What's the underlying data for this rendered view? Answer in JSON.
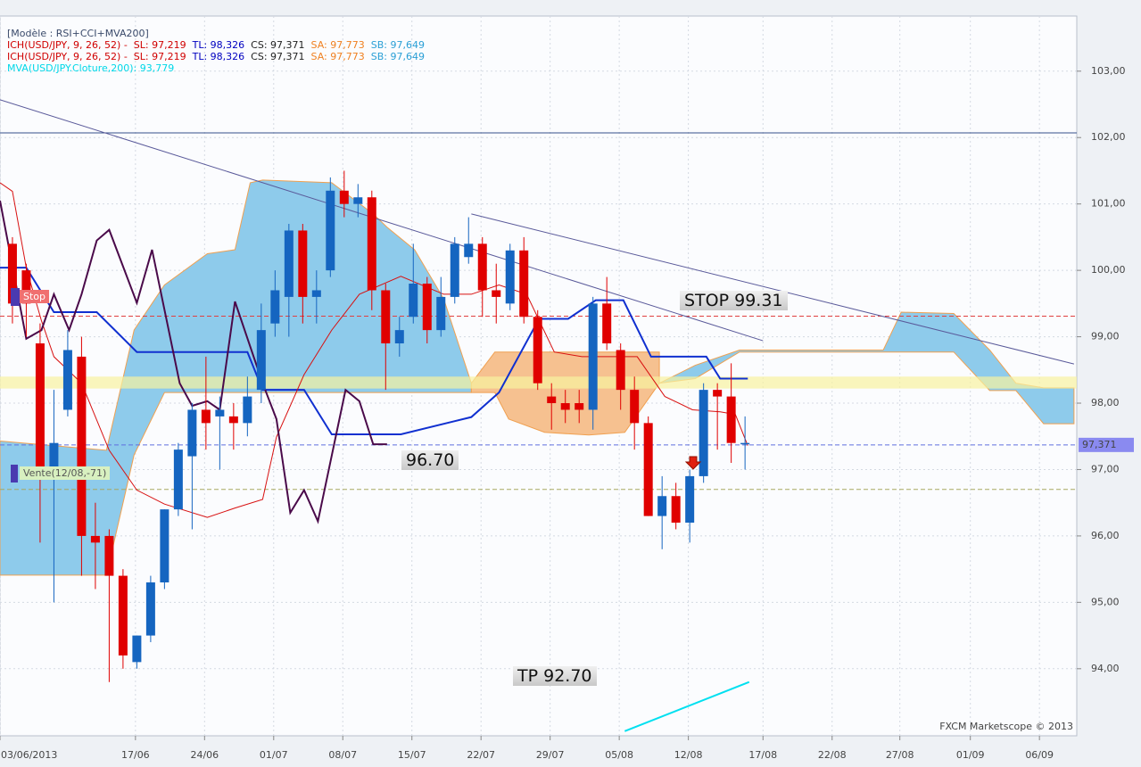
{
  "header": {
    "legend": [
      [
        {
          "text": "[Modèle : RSI+CCI+MVA200]",
          "color": "#3a4a6a"
        }
      ],
      [
        {
          "text": "ICH(USD/JPY, 9, 26, 52) -",
          "color": "#d00000"
        },
        {
          "text": "SL: 97,219",
          "color": "#d00000"
        },
        {
          "text": "TL: 98,326",
          "color": "#0000c0"
        },
        {
          "text": "CS: 97,371",
          "color": "#222222"
        },
        {
          "text": "SA: 97,773",
          "color": "#f08020"
        },
        {
          "text": "SB: 97,649",
          "color": "#2a9fd6"
        }
      ],
      [
        {
          "text": "ICH(USD/JPY, 9, 26, 52) -",
          "color": "#d00000"
        },
        {
          "text": "SL: 97,219",
          "color": "#d00000"
        },
        {
          "text": "TL: 98,326",
          "color": "#0000c0"
        },
        {
          "text": "CS: 97,371",
          "color": "#222222"
        },
        {
          "text": "SA: 97,773",
          "color": "#f08020"
        },
        {
          "text": "SB: 97,649",
          "color": "#2a9fd6"
        }
      ],
      [
        {
          "text": "MVA(USD/JPY.Cloture,200): 93,779",
          "color": "#00d8e8"
        }
      ]
    ]
  },
  "annotations": {
    "stop_level": "STOP 99.31",
    "level": "96.70",
    "target": "TP 92.70",
    "stop_marker": "Stop",
    "sell_marker": "Vente(12/08,-71)",
    "credit": "FXCM Marketscope © 2013"
  },
  "chart_data": {
    "type": "candlestick",
    "up_color": "#1565c0",
    "down_color": "#e00000",
    "grid": true,
    "xlim": [
      0.1,
      78.0
    ],
    "ylim": [
      92.99,
      103.83
    ],
    "xticks": [
      {
        "value": 0.1,
        "label": "03/06/2013"
      },
      {
        "value": 9.9,
        "label": "17/06"
      },
      {
        "value": 14.9,
        "label": "24/06"
      },
      {
        "value": 19.9,
        "label": "01/07"
      },
      {
        "value": 24.9,
        "label": "08/07"
      },
      {
        "value": 29.9,
        "label": "15/07"
      },
      {
        "value": 34.9,
        "label": "22/07"
      },
      {
        "value": 39.9,
        "label": "29/07"
      },
      {
        "value": 44.9,
        "label": "05/08"
      },
      {
        "value": 49.9,
        "label": "12/08"
      },
      {
        "value": 55.3,
        "label": "17/08"
      },
      {
        "value": 60.3,
        "label": "22/08"
      },
      {
        "value": 65.2,
        "label": "27/08"
      },
      {
        "value": 70.3,
        "label": "01/09"
      },
      {
        "value": 75.3,
        "label": "06/09"
      }
    ],
    "yticks": [
      {
        "value": 94,
        "label": "94,00"
      },
      {
        "value": 95,
        "label": "95,00"
      },
      {
        "value": 96,
        "label": "96,00"
      },
      {
        "value": 97,
        "label": "97,00"
      },
      {
        "value": 98,
        "label": "98,00"
      },
      {
        "value": 99,
        "label": "99,00"
      },
      {
        "value": 100,
        "label": "100,00"
      },
      {
        "value": 101,
        "label": "101,00"
      },
      {
        "value": 102,
        "label": "102,00"
      },
      {
        "value": 103,
        "label": "103,00"
      }
    ],
    "x": [
      1,
      2,
      3,
      4,
      5,
      6,
      7,
      8,
      9,
      10,
      11,
      12,
      13,
      14,
      15,
      16,
      17,
      18,
      19,
      20,
      21,
      22,
      23,
      24,
      25,
      26,
      27,
      28,
      29,
      30,
      31,
      32,
      33,
      34,
      35,
      36,
      37,
      38,
      39,
      40,
      41,
      42,
      43,
      44,
      45,
      46,
      47,
      48,
      49,
      50,
      51,
      52,
      53,
      54
    ],
    "open": [
      100.4,
      100.0,
      98.9,
      97.0,
      97.9,
      98.7,
      96.0,
      96.0,
      95.4,
      94.1,
      94.5,
      95.3,
      96.4,
      97.2,
      97.9,
      97.8,
      97.8,
      97.7,
      98.2,
      99.2,
      99.6,
      100.6,
      99.6,
      100.0,
      101.2,
      101.0,
      101.1,
      99.7,
      98.9,
      99.3,
      99.8,
      99.1,
      99.6,
      100.2,
      100.4,
      99.7,
      99.5,
      100.3,
      99.3,
      98.1,
      98.0,
      98.0,
      97.9,
      99.5,
      98.8,
      98.2,
      97.7,
      96.3,
      96.6,
      96.2,
      96.9,
      98.2,
      98.1,
      97.4
    ],
    "high": [
      100.5,
      100.1,
      99.2,
      98.2,
      99.1,
      99.0,
      96.5,
      96.1,
      95.5,
      94.5,
      95.4,
      96.4,
      97.4,
      98.0,
      98.7,
      98.1,
      98.0,
      98.4,
      99.5,
      100.0,
      100.7,
      100.7,
      100.0,
      101.4,
      101.5,
      101.3,
      101.2,
      99.8,
      99.3,
      100.4,
      99.9,
      99.9,
      100.5,
      100.8,
      100.5,
      100.1,
      100.4,
      100.5,
      99.4,
      98.3,
      98.2,
      98.2,
      99.6,
      99.9,
      98.9,
      98.4,
      97.8,
      96.9,
      96.8,
      97.0,
      98.3,
      98.3,
      98.6,
      97.8
    ],
    "low": [
      99.2,
      99.0,
      95.9,
      95.0,
      97.8,
      95.4,
      95.2,
      93.8,
      94.0,
      94.0,
      94.4,
      95.2,
      96.3,
      96.1,
      97.3,
      97.0,
      97.3,
      97.5,
      98.0,
      99.0,
      99.0,
      99.2,
      99.2,
      99.9,
      100.8,
      100.8,
      99.4,
      98.2,
      98.7,
      99.2,
      98.9,
      99.0,
      99.5,
      100.1,
      99.3,
      99.2,
      99.4,
      99.2,
      98.2,
      97.6,
      97.7,
      97.7,
      97.6,
      98.8,
      97.9,
      97.3,
      96.3,
      95.8,
      96.1,
      95.9,
      96.8,
      97.3,
      97.1,
      97.0
    ],
    "close": [
      99.5,
      99.5,
      97.0,
      97.4,
      98.8,
      96.0,
      95.9,
      95.4,
      94.2,
      94.5,
      95.3,
      96.4,
      97.3,
      97.9,
      97.7,
      97.9,
      97.7,
      98.1,
      99.1,
      99.7,
      100.6,
      99.6,
      99.7,
      101.2,
      101.0,
      101.1,
      99.7,
      98.9,
      99.1,
      99.8,
      99.1,
      99.6,
      100.4,
      100.4,
      99.7,
      99.6,
      100.3,
      99.3,
      98.3,
      98.0,
      97.9,
      97.9,
      99.5,
      98.9,
      98.2,
      97.7,
      96.3,
      96.6,
      96.2,
      96.9,
      98.2,
      98.1,
      97.4,
      97.4
    ],
    "clouds": [
      {
        "color": "#8ecbeb",
        "x": [
          0.1,
          7.8,
          9.8,
          12.0,
          15.1,
          17.1,
          18.2,
          19.1,
          24.1,
          27.1,
          28.1,
          30.1,
          32.2,
          34.2
        ],
        "upper": [
          97.43,
          97.29,
          99.1,
          99.78,
          100.25,
          100.31,
          101.32,
          101.36,
          101.32,
          100.85,
          100.65,
          100.31,
          99.57,
          98.3
        ],
        "lower": [
          95.41,
          95.41,
          97.22,
          98.16,
          98.16,
          98.16,
          98.16,
          98.16,
          98.16,
          98.16,
          98.16,
          98.16,
          98.16,
          98.16
        ]
      },
      {
        "color": "#f6c190",
        "x": [
          34.2,
          35.9,
          36.9,
          39.5,
          42.7,
          45.3,
          47.8
        ],
        "upper": [
          98.3,
          98.77,
          98.77,
          98.77,
          98.77,
          98.77,
          98.77
        ],
        "lower": [
          98.16,
          98.16,
          97.76,
          97.56,
          97.52,
          97.56,
          98.3
        ]
      },
      {
        "color": "#8ecbeb",
        "x": [
          47.8,
          50.4,
          53.6,
          64.0,
          65.3,
          69.1,
          71.7,
          73.6,
          75.6,
          77.8
        ],
        "upper": [
          98.3,
          98.57,
          98.8,
          98.8,
          99.37,
          99.35,
          98.8,
          98.3,
          98.23,
          98.23
        ],
        "lower": [
          98.3,
          98.37,
          98.77,
          98.77,
          98.77,
          98.77,
          98.19,
          98.19,
          97.69,
          97.69
        ]
      }
    ],
    "band": {
      "from": 98.22,
      "to": 98.4,
      "color": "#f8f2a0"
    },
    "levels": [
      {
        "value": 102.07,
        "color": "#34508a",
        "dash": false
      },
      {
        "value": 99.31,
        "color": "#e04040",
        "dash": true
      },
      {
        "value": 97.371,
        "color": "#6070e0",
        "dash": true
      },
      {
        "value": 96.7,
        "color": "#a8a860",
        "dash": true
      }
    ],
    "trendlines": [
      {
        "color": "#5a5a9a",
        "x": [
          0.1,
          55.3
        ],
        "values": [
          102.57,
          98.94
        ]
      },
      {
        "color": "#5a5a9a",
        "x": [
          34.2,
          77.8
        ],
        "values": [
          100.85,
          98.59
        ]
      }
    ],
    "lines": [
      {
        "color": "#1030d0",
        "width": 2,
        "x": [
          0.1,
          2.0,
          4.0,
          7.1,
          10.0,
          18.0,
          19.1,
          22.1,
          24.1,
          26.1,
          29.1,
          34.2,
          36.2,
          39.1,
          41.2,
          43.2,
          45.2,
          47.2,
          51.2,
          52.2,
          54.2
        ],
        "values": [
          100.04,
          100.04,
          99.37,
          99.37,
          98.77,
          98.77,
          98.2,
          98.2,
          97.53,
          97.53,
          97.53,
          97.79,
          98.16,
          99.27,
          99.27,
          99.55,
          99.55,
          98.7,
          98.7,
          98.37,
          98.37
        ]
      },
      {
        "color": "#d81010",
        "width": 1,
        "x": [
          0.1,
          1.0,
          2.0,
          3.1,
          4.0,
          6.0,
          8.0,
          10.0,
          12.0,
          15.1,
          17.1,
          19.1,
          20.1,
          22.1,
          24.1,
          26.1,
          29.1,
          32.2,
          34.2,
          36.2,
          38.2,
          40.2,
          42.2,
          44.2,
          46.2,
          48.2,
          50.2,
          52.2,
          53.3,
          54.2
        ],
        "values": [
          101.32,
          101.19,
          100.04,
          99.24,
          98.7,
          98.3,
          97.29,
          96.69,
          96.48,
          96.28,
          96.42,
          96.55,
          97.49,
          98.43,
          99.1,
          99.64,
          99.91,
          99.64,
          99.64,
          99.78,
          99.64,
          98.77,
          98.7,
          98.7,
          98.7,
          98.1,
          97.9,
          97.87,
          97.83,
          97.36
        ]
      },
      {
        "color": "#4a0a4a",
        "width": 2,
        "x": [
          0.1,
          2.0,
          3.1,
          4.0,
          5.1,
          6.0,
          7.1,
          8.0,
          10.0,
          11.1,
          13.1,
          14.0,
          15.1,
          16.0,
          17.1,
          19.1,
          20.1,
          21.1,
          22.1,
          23.1,
          25.1,
          26.1,
          27.1,
          28.1
        ],
        "values": [
          101.05,
          98.97,
          99.1,
          99.64,
          99.1,
          99.64,
          100.45,
          100.61,
          99.51,
          100.31,
          98.3,
          97.96,
          98.03,
          97.9,
          99.53,
          98.3,
          97.76,
          96.35,
          96.69,
          96.22,
          98.2,
          98.03,
          97.38,
          97.38
        ]
      },
      {
        "color": "#00e0f0",
        "width": 2,
        "x": [
          45.3,
          54.3
        ],
        "values": [
          93.06,
          93.8
        ]
      }
    ],
    "price_label": {
      "value": 97.371,
      "label": "97,371"
    }
  }
}
